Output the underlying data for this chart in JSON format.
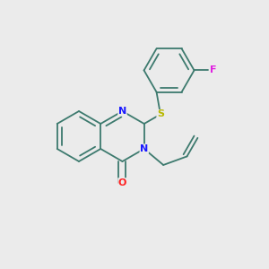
{
  "bg": "#ebebeb",
  "bond_color": "#3d7a6e",
  "N_color": "#1a1aff",
  "O_color": "#ff2020",
  "S_color": "#b8b800",
  "F_color": "#e020e0",
  "lw": 1.3,
  "fs": 8.0,
  "xlim": [
    0,
    300
  ],
  "ylim": [
    0,
    300
  ]
}
